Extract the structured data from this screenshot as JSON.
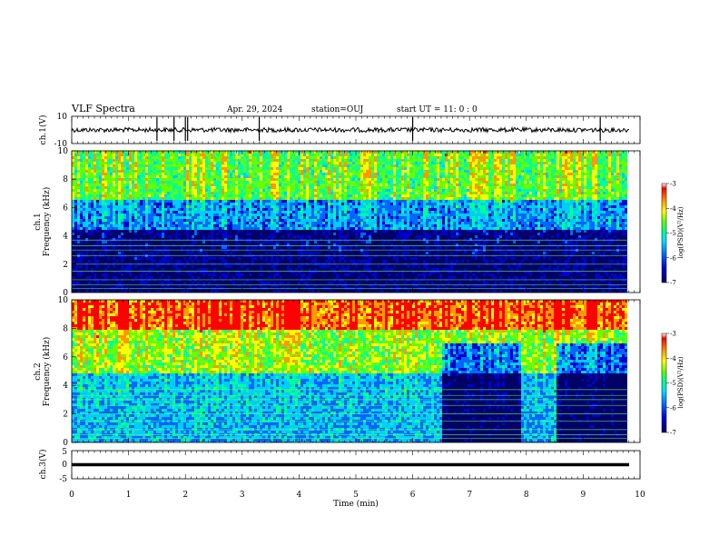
{
  "header": {
    "title": "VLF Spectra",
    "date": "Apr. 29, 2024",
    "station": "station=OUJ",
    "start": "start  UT =   11: 0  : 0"
  },
  "colors": {
    "colorbar": [
      "#000066",
      "#0000cc",
      "#0066ff",
      "#00ccff",
      "#00ff99",
      "#66ff00",
      "#ffff00",
      "#ff9900",
      "#ff0000",
      "#ffffff"
    ],
    "trace": "#000000"
  },
  "chart_data": [
    {
      "type": "line",
      "panel": "ch1-waveform",
      "ylabel": "ch.1(V)",
      "ylim": [
        -10,
        10
      ],
      "yticks": [
        "10",
        "-10"
      ],
      "baseline": 0,
      "spikes_min": [
        1.5,
        1.8,
        2.0,
        2.04,
        3.3,
        6.0,
        9.3
      ],
      "xlim": [
        0,
        10
      ]
    },
    {
      "type": "heatmap",
      "panel": "ch1-spectrogram",
      "ylabel": "ch.1\nFrequency (kHz)",
      "ylim": [
        0,
        10
      ],
      "yticks": [
        "0",
        "2",
        "4",
        "6",
        "8",
        "10"
      ],
      "xlim": [
        0,
        9.8
      ],
      "colorbar": {
        "label": "log(PSD)(V²/Hz)",
        "range": [
          -7,
          -3
        ],
        "ticks": [
          "-3",
          "-4",
          "-5",
          "-6",
          "-7"
        ]
      },
      "description_bands": [
        {
          "fmin": 0,
          "fmax": 4.5,
          "level": -6.8
        },
        {
          "fmin": 4.5,
          "fmax": 6.5,
          "level": -5.8
        },
        {
          "fmin": 6.5,
          "fmax": 10,
          "level": -4.8
        }
      ]
    },
    {
      "type": "heatmap",
      "panel": "ch2-spectrogram",
      "ylabel": "ch.2\nFrequency (kHz)",
      "ylim": [
        0,
        10
      ],
      "yticks": [
        "0",
        "2",
        "4",
        "6",
        "8",
        "10"
      ],
      "xlim": [
        0,
        9.8
      ],
      "colorbar": {
        "label": "log(PSD)(V²/Hz)",
        "range": [
          -7,
          -3
        ],
        "ticks": [
          "-3",
          "-4",
          "-5",
          "-6",
          "-7"
        ]
      },
      "quiet_intervals_min": [
        [
          6.5,
          7.9
        ],
        [
          8.5,
          9.8
        ]
      ],
      "description_bands": [
        {
          "fmin": 0,
          "fmax": 5,
          "level": -5.6
        },
        {
          "fmin": 5,
          "fmax": 8,
          "level": -4.6
        },
        {
          "fmin": 8,
          "fmax": 10,
          "level": -3.6
        }
      ]
    },
    {
      "type": "line",
      "panel": "ch3-waveform",
      "ylabel": "ch.3(V)",
      "ylim": [
        -5,
        5
      ],
      "yticks": [
        "5",
        "0",
        "-5"
      ],
      "baseline": 0,
      "xlim": [
        0,
        10
      ]
    }
  ],
  "xaxis": {
    "label": "Time (min)",
    "ticks": [
      "0",
      "1",
      "2",
      "3",
      "4",
      "5",
      "6",
      "7",
      "8",
      "9",
      "10"
    ]
  }
}
